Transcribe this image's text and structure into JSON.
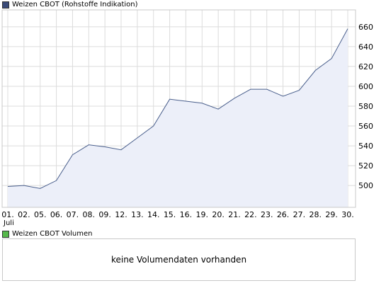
{
  "price_legend": {
    "label": "Weizen CBOT (Rohstoffe Indikation)",
    "color": "#3a4a78"
  },
  "volume_legend": {
    "label": "Weizen CBOT Volumen",
    "color": "#55b84a"
  },
  "volume_message": "keine Volumendaten vorhanden",
  "colors": {
    "line": "#4a5f8c",
    "fill": "#eceff9",
    "grid": "#dcdcdc"
  },
  "chart_data": {
    "type": "area",
    "categories": [
      "01.",
      "02.",
      "05.",
      "06.",
      "07.",
      "08.",
      "09.",
      "12.",
      "13.",
      "14.",
      "15.",
      "16.",
      "19.",
      "20.",
      "21.",
      "22.",
      "23.",
      "26.",
      "27.",
      "28.",
      "29.",
      "30."
    ],
    "x_sublabel": "Juli",
    "series": [
      {
        "values": [
          499,
          500,
          497,
          505,
          531,
          541,
          539,
          536,
          548,
          560,
          587,
          585,
          583,
          577,
          588,
          597,
          597,
          590,
          596,
          616,
          628,
          658
        ]
      }
    ],
    "y_ticks": [
      500,
      520,
      540,
      560,
      580,
      600,
      620,
      640,
      660
    ],
    "ylim": [
      478,
      677
    ],
    "grid": true,
    "y_axis_position": "right"
  }
}
